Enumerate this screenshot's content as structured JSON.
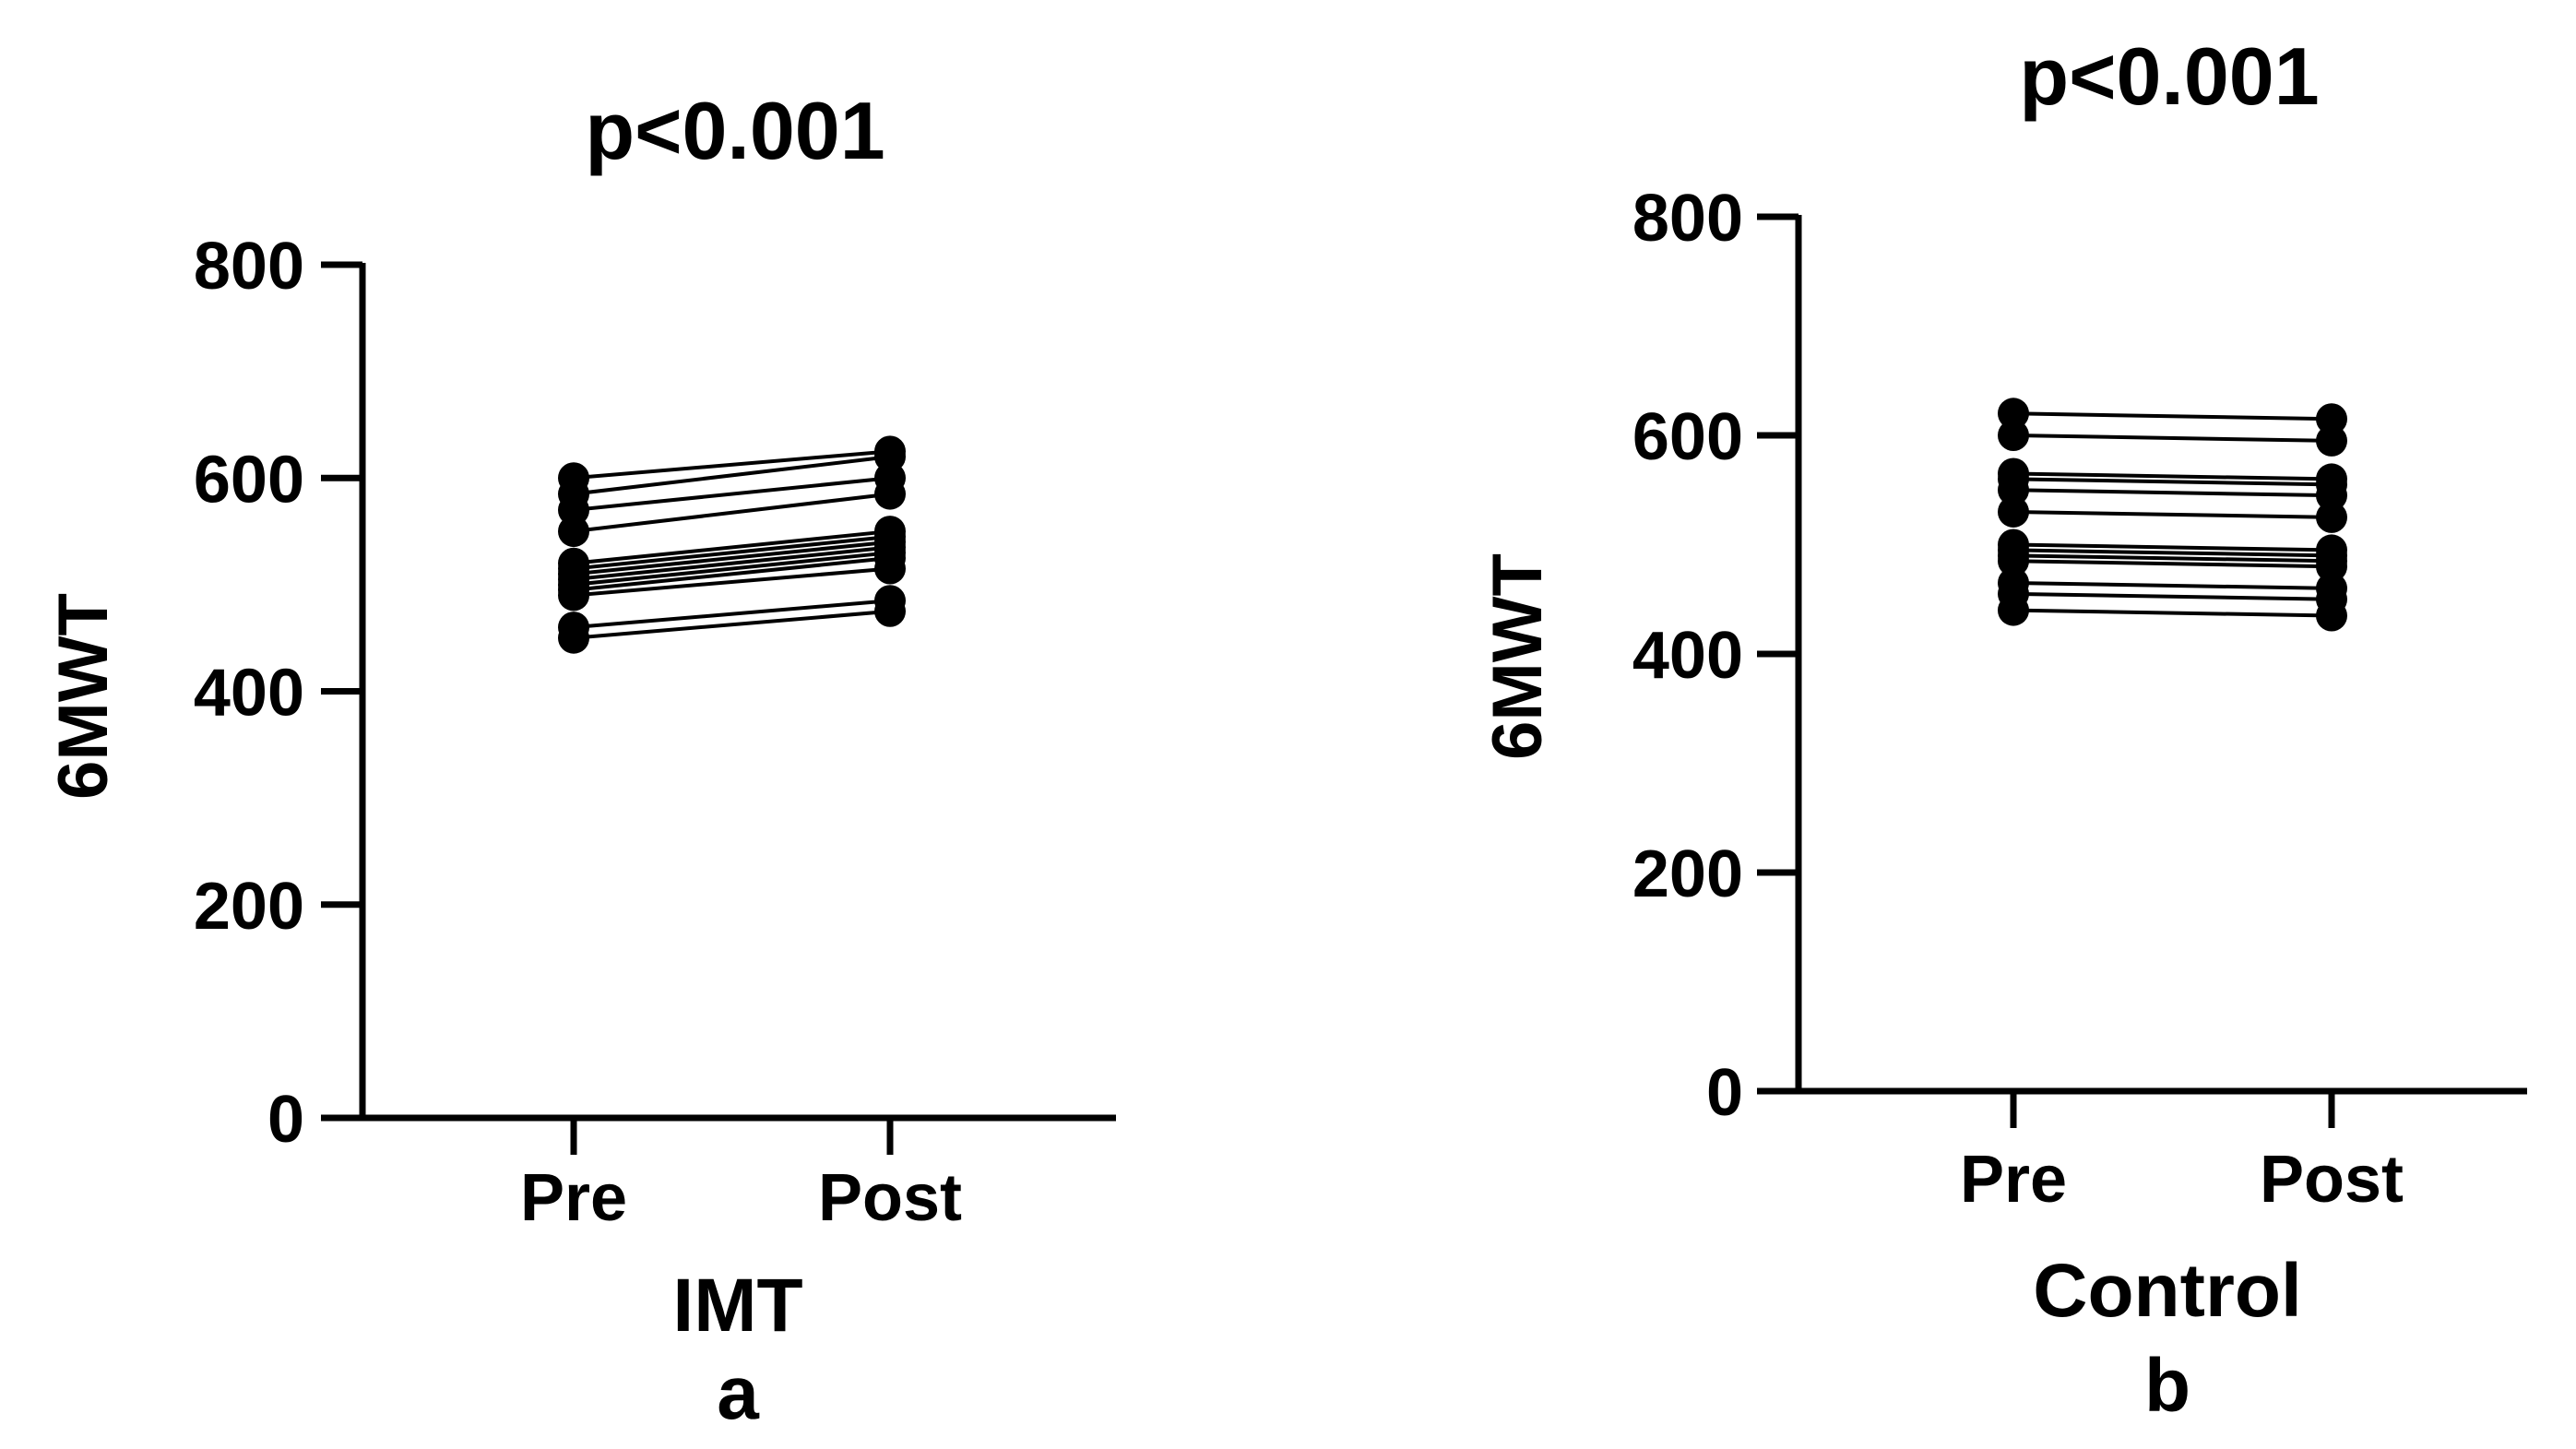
{
  "chart_data": [
    {
      "type": "line",
      "title": "p<0.001",
      "ylabel": "6MWT",
      "xlabel": "IMT",
      "panel_label": "a",
      "categories": [
        "Pre",
        "Post"
      ],
      "ylim": [
        0,
        800
      ],
      "yticks": [
        "0",
        "200",
        "400",
        "600",
        "800"
      ],
      "grid": false,
      "color": "#000000",
      "series": [
        {
          "values": [
            600,
            625
          ]
        },
        {
          "values": [
            585,
            620
          ]
        },
        {
          "values": [
            570,
            600
          ]
        },
        {
          "values": [
            550,
            585
          ]
        },
        {
          "values": [
            520,
            550
          ]
        },
        {
          "values": [
            515,
            545
          ]
        },
        {
          "values": [
            510,
            540
          ]
        },
        {
          "values": [
            505,
            535
          ]
        },
        {
          "values": [
            500,
            530
          ]
        },
        {
          "values": [
            495,
            525
          ]
        },
        {
          "values": [
            490,
            515
          ]
        },
        {
          "values": [
            460,
            485
          ]
        },
        {
          "values": [
            450,
            475
          ]
        }
      ]
    },
    {
      "type": "line",
      "title": "p<0.001",
      "ylabel": "6MWT",
      "xlabel": "Control",
      "panel_label": "b",
      "categories": [
        "Pre",
        "Post"
      ],
      "ylim": [
        0,
        800
      ],
      "yticks": [
        "0",
        "200",
        "400",
        "600",
        "800"
      ],
      "grid": false,
      "color": "#000000",
      "series": [
        {
          "values": [
            620,
            615
          ]
        },
        {
          "values": [
            600,
            595
          ]
        },
        {
          "values": [
            565,
            560
          ]
        },
        {
          "values": [
            560,
            555
          ]
        },
        {
          "values": [
            550,
            545
          ]
        },
        {
          "values": [
            530,
            525
          ]
        },
        {
          "values": [
            500,
            495
          ]
        },
        {
          "values": [
            495,
            490
          ]
        },
        {
          "values": [
            490,
            485
          ]
        },
        {
          "values": [
            485,
            480
          ]
        },
        {
          "values": [
            465,
            460
          ]
        },
        {
          "values": [
            455,
            450
          ]
        },
        {
          "values": [
            440,
            435
          ]
        }
      ]
    }
  ]
}
